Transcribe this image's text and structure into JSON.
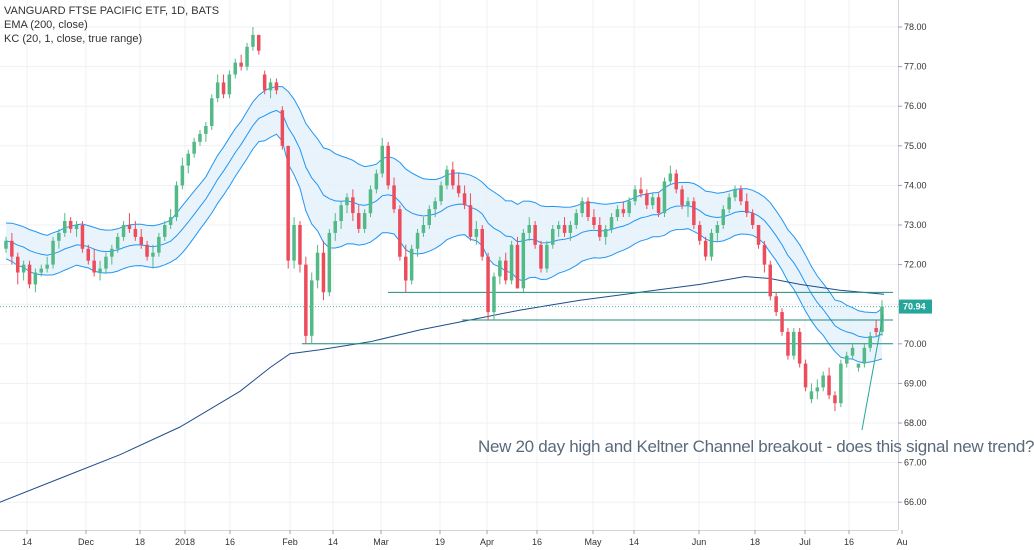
{
  "legend": {
    "symbol": "VANGUARD FTSE PACIFIC ETF, 1D, BATS",
    "ema": "EMA (200, close)",
    "kc": "KC (20, 1, close, true range)"
  },
  "annotation": "New 20 day high and Keltner Channel breakout - does this signal new trend?",
  "colors": {
    "up": "#53b987",
    "down": "#eb4d5c",
    "band": "#2196f3",
    "band_fill": "#e3f0fb",
    "ema": "#1f4e8c",
    "hline": "#1e8c7e",
    "tag": "#26a69a",
    "grid": "#eef1f4"
  },
  "chart_data": {
    "type": "candlestick",
    "title": "VANGUARD FTSE PACIFIC ETF, 1D, BATS",
    "ylim": [
      65.6,
      78.2
    ],
    "yticks": [
      "78.00",
      "77.00",
      "76.00",
      "75.00",
      "74.00",
      "73.00",
      "72.00",
      "71.00",
      "70.00",
      "69.00",
      "68.00",
      "67.00",
      "66.00"
    ],
    "xticks": [
      "14",
      "Dec",
      "18",
      "2018",
      "16",
      "Feb",
      "14",
      "Mar",
      "19",
      "Apr",
      "16",
      "May",
      "14",
      "Jun",
      "18",
      "Jul",
      "16",
      "Au"
    ],
    "last_price": "70.94",
    "horizontal_levels": [
      71.3,
      70.6,
      70.0
    ],
    "candles": [
      [
        72.4,
        72.7,
        72.3,
        72.6
      ],
      [
        72.6,
        72.8,
        72.0,
        72.2
      ],
      [
        72.2,
        72.3,
        71.5,
        71.8
      ],
      [
        71.8,
        72.1,
        71.6,
        72.0
      ],
      [
        72.0,
        72.1,
        71.4,
        71.5
      ],
      [
        71.5,
        71.9,
        71.3,
        71.8
      ],
      [
        71.8,
        72.0,
        71.7,
        71.9
      ],
      [
        71.9,
        72.2,
        71.8,
        72.0
      ],
      [
        72.0,
        72.7,
        71.9,
        72.6
      ],
      [
        72.6,
        72.9,
        72.4,
        72.8
      ],
      [
        72.8,
        73.3,
        72.7,
        73.1
      ],
      [
        73.1,
        73.2,
        72.8,
        72.9
      ],
      [
        72.9,
        73.1,
        72.7,
        73.0
      ],
      [
        73.0,
        73.1,
        72.3,
        72.4
      ],
      [
        72.4,
        72.5,
        72.0,
        72.1
      ],
      [
        72.1,
        72.4,
        71.7,
        71.8
      ],
      [
        71.8,
        72.1,
        71.6,
        71.9
      ],
      [
        71.9,
        72.3,
        71.8,
        72.2
      ],
      [
        72.2,
        72.5,
        72.0,
        72.4
      ],
      [
        72.4,
        72.8,
        72.3,
        72.7
      ],
      [
        72.7,
        73.1,
        72.6,
        73.0
      ],
      [
        73.0,
        73.3,
        72.8,
        72.9
      ],
      [
        72.9,
        73.1,
        72.6,
        72.7
      ],
      [
        72.7,
        72.9,
        72.4,
        72.5
      ],
      [
        72.5,
        72.6,
        72.1,
        72.2
      ],
      [
        72.2,
        72.5,
        71.9,
        72.3
      ],
      [
        72.3,
        72.8,
        72.2,
        72.7
      ],
      [
        72.7,
        73.1,
        72.6,
        73.0
      ],
      [
        73.0,
        73.4,
        72.9,
        73.2
      ],
      [
        73.2,
        74.1,
        73.1,
        74.0
      ],
      [
        74.0,
        74.7,
        73.9,
        74.5
      ],
      [
        74.5,
        74.9,
        74.3,
        74.8
      ],
      [
        74.8,
        75.2,
        74.7,
        75.1
      ],
      [
        75.1,
        75.4,
        75.0,
        75.3
      ],
      [
        75.3,
        75.6,
        75.1,
        75.5
      ],
      [
        75.5,
        76.3,
        75.4,
        76.2
      ],
      [
        76.2,
        76.8,
        76.1,
        76.6
      ],
      [
        76.6,
        76.8,
        76.2,
        76.3
      ],
      [
        76.3,
        76.9,
        76.2,
        76.8
      ],
      [
        76.8,
        77.2,
        76.7,
        77.1
      ],
      [
        77.1,
        77.3,
        76.9,
        77.0
      ],
      [
        77.0,
        77.6,
        76.9,
        77.5
      ],
      [
        77.5,
        78.0,
        77.4,
        77.8
      ],
      [
        77.8,
        77.8,
        77.3,
        77.4
      ],
      [
        76.8,
        76.9,
        76.3,
        76.4
      ],
      [
        76.4,
        76.7,
        76.2,
        76.6
      ],
      [
        76.6,
        76.7,
        76.3,
        76.4
      ],
      [
        75.9,
        76.0,
        74.9,
        75.0
      ],
      [
        75.0,
        75.0,
        71.9,
        72.1
      ],
      [
        72.1,
        73.2,
        71.9,
        73.0
      ],
      [
        73.0,
        73.1,
        71.8,
        72.0
      ],
      [
        72.0,
        72.2,
        70.0,
        70.2
      ],
      [
        70.2,
        71.8,
        70.0,
        71.6
      ],
      [
        71.6,
        72.5,
        71.4,
        72.3
      ],
      [
        72.3,
        72.6,
        71.1,
        71.3
      ],
      [
        71.3,
        72.9,
        71.2,
        72.8
      ],
      [
        72.8,
        73.3,
        72.6,
        73.1
      ],
      [
        73.1,
        73.6,
        72.9,
        73.5
      ],
      [
        73.5,
        73.8,
        73.3,
        73.7
      ],
      [
        73.7,
        73.9,
        73.1,
        73.3
      ],
      [
        73.3,
        73.5,
        72.8,
        72.9
      ],
      [
        72.9,
        73.4,
        72.8,
        73.3
      ],
      [
        73.3,
        74.0,
        73.2,
        73.9
      ],
      [
        73.9,
        74.4,
        73.8,
        74.3
      ],
      [
        74.3,
        75.2,
        74.2,
        75.0
      ],
      [
        75.0,
        75.1,
        73.9,
        74.0
      ],
      [
        74.0,
        74.2,
        73.3,
        73.4
      ],
      [
        73.4,
        73.5,
        72.1,
        72.2
      ],
      [
        72.2,
        72.5,
        71.3,
        71.6
      ],
      [
        71.6,
        72.5,
        71.5,
        72.4
      ],
      [
        72.4,
        72.9,
        72.2,
        72.8
      ],
      [
        72.8,
        73.2,
        72.7,
        73.0
      ],
      [
        73.0,
        73.5,
        72.9,
        73.4
      ],
      [
        73.4,
        73.7,
        73.2,
        73.6
      ],
      [
        73.6,
        74.1,
        73.5,
        74.0
      ],
      [
        74.0,
        74.5,
        73.9,
        74.4
      ],
      [
        74.4,
        74.6,
        73.9,
        74.0
      ],
      [
        74.0,
        74.3,
        73.7,
        73.8
      ],
      [
        73.8,
        74.0,
        73.4,
        73.5
      ],
      [
        73.5,
        73.8,
        72.6,
        72.7
      ],
      [
        72.7,
        73.1,
        72.5,
        72.9
      ],
      [
        72.9,
        73.0,
        72.1,
        72.2
      ],
      [
        72.2,
        72.3,
        70.6,
        70.8
      ],
      [
        70.8,
        71.8,
        70.6,
        71.7
      ],
      [
        71.7,
        72.2,
        71.5,
        72.1
      ],
      [
        72.1,
        72.3,
        71.5,
        71.6
      ],
      [
        71.6,
        72.6,
        71.5,
        72.5
      ],
      [
        72.5,
        72.7,
        71.4,
        71.4
      ],
      [
        71.4,
        72.9,
        71.3,
        72.8
      ],
      [
        72.8,
        73.2,
        72.6,
        73.0
      ],
      [
        73.0,
        73.1,
        72.4,
        72.5
      ],
      [
        72.5,
        72.6,
        71.8,
        71.9
      ],
      [
        71.9,
        72.6,
        71.8,
        72.5
      ],
      [
        72.5,
        73.0,
        72.4,
        72.9
      ],
      [
        72.9,
        73.1,
        72.7,
        73.0
      ],
      [
        73.0,
        73.2,
        72.7,
        72.8
      ],
      [
        72.8,
        73.1,
        72.6,
        73.0
      ],
      [
        73.0,
        73.4,
        72.9,
        73.3
      ],
      [
        73.3,
        73.7,
        73.2,
        73.6
      ],
      [
        73.6,
        73.7,
        73.1,
        73.2
      ],
      [
        73.2,
        73.4,
        72.9,
        73.0
      ],
      [
        73.0,
        73.2,
        72.6,
        72.7
      ],
      [
        72.7,
        73.0,
        72.5,
        72.9
      ],
      [
        72.9,
        73.3,
        72.8,
        73.2
      ],
      [
        73.2,
        73.5,
        73.1,
        73.4
      ],
      [
        73.4,
        73.6,
        73.2,
        73.3
      ],
      [
        73.3,
        73.7,
        73.2,
        73.6
      ],
      [
        73.6,
        74.0,
        73.5,
        73.9
      ],
      [
        73.9,
        74.2,
        73.7,
        73.8
      ],
      [
        73.8,
        73.9,
        73.4,
        73.5
      ],
      [
        73.5,
        73.8,
        73.4,
        73.7
      ],
      [
        73.7,
        73.8,
        73.2,
        73.3
      ],
      [
        73.3,
        74.2,
        73.2,
        74.1
      ],
      [
        74.1,
        74.5,
        74.0,
        74.3
      ],
      [
        74.3,
        74.4,
        73.8,
        73.9
      ],
      [
        73.9,
        74.0,
        73.4,
        73.5
      ],
      [
        73.5,
        73.7,
        73.2,
        73.6
      ],
      [
        73.6,
        73.7,
        72.9,
        73.0
      ],
      [
        73.0,
        73.1,
        72.5,
        72.6
      ],
      [
        72.6,
        72.7,
        72.1,
        72.2
      ],
      [
        72.2,
        72.9,
        72.1,
        72.8
      ],
      [
        72.8,
        73.1,
        72.6,
        73.0
      ],
      [
        73.0,
        73.5,
        72.9,
        73.4
      ],
      [
        73.4,
        73.8,
        73.3,
        73.7
      ],
      [
        73.7,
        74.0,
        73.6,
        73.9
      ],
      [
        73.9,
        74.0,
        73.5,
        73.6
      ],
      [
        73.6,
        73.8,
        73.2,
        73.3
      ],
      [
        73.3,
        73.4,
        72.9,
        73.0
      ],
      [
        73.0,
        73.0,
        72.4,
        72.5
      ],
      [
        72.5,
        72.6,
        71.8,
        72.0
      ],
      [
        72.0,
        72.1,
        71.1,
        71.2
      ],
      [
        71.2,
        71.3,
        70.7,
        70.8
      ],
      [
        70.8,
        70.9,
        70.2,
        70.3
      ],
      [
        70.3,
        70.4,
        69.6,
        69.7
      ],
      [
        69.7,
        70.4,
        69.6,
        70.3
      ],
      [
        70.3,
        70.4,
        69.4,
        69.5
      ],
      [
        69.5,
        69.6,
        68.8,
        68.9
      ],
      [
        68.6,
        69.0,
        68.5,
        68.8
      ],
      [
        68.8,
        69.1,
        68.6,
        68.9
      ],
      [
        68.9,
        69.3,
        68.8,
        69.2
      ],
      [
        69.2,
        69.4,
        68.6,
        68.7
      ],
      [
        68.7,
        68.8,
        68.3,
        68.5
      ],
      [
        68.5,
        69.6,
        68.4,
        69.5
      ],
      [
        69.5,
        69.8,
        69.4,
        69.7
      ],
      [
        69.7,
        70.0,
        69.6,
        69.9
      ],
      [
        69.4,
        69.5,
        69.3,
        69.5
      ],
      [
        69.5,
        70.0,
        69.4,
        69.9
      ],
      [
        69.9,
        70.3,
        69.8,
        70.2
      ],
      [
        70.4,
        70.6,
        70.2,
        70.3
      ],
      [
        70.3,
        71.1,
        70.2,
        70.94
      ]
    ]
  }
}
